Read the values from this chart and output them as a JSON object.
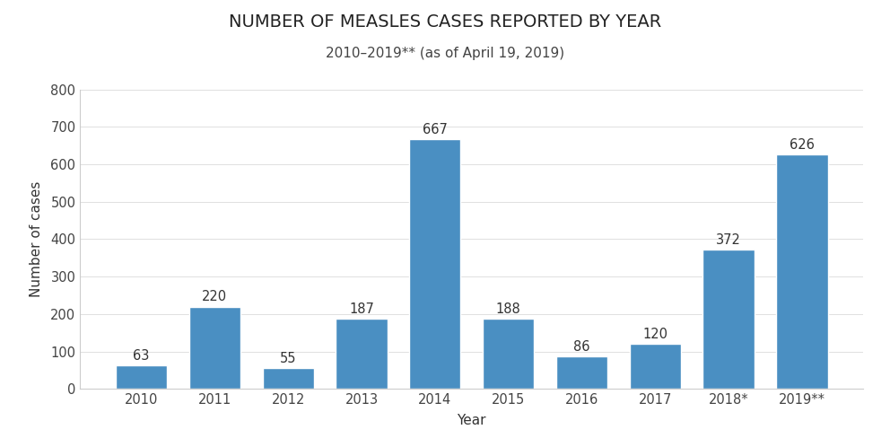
{
  "categories": [
    "2010",
    "2011",
    "2012",
    "2013",
    "2014",
    "2015",
    "2016",
    "2017",
    "2018*",
    "2019**"
  ],
  "values": [
    63,
    220,
    55,
    187,
    667,
    188,
    86,
    120,
    372,
    626
  ],
  "bar_color": "#4a8fc2",
  "title": "NUMBER OF MEASLES CASES REPORTED BY YEAR",
  "subtitle": "2010–2019** (as of April 19, 2019)",
  "xlabel": "Year",
  "ylabel": "Number of cases",
  "ylim": [
    0,
    800
  ],
  "yticks": [
    0,
    100,
    200,
    300,
    400,
    500,
    600,
    700,
    800
  ],
  "title_fontsize": 14,
  "subtitle_fontsize": 11,
  "axis_label_fontsize": 11,
  "tick_fontsize": 10.5,
  "annotation_fontsize": 10.5,
  "background_color": "#ffffff",
  "bar_edge_color": "white",
  "bar_linewidth": 1.0,
  "bar_width": 0.7
}
